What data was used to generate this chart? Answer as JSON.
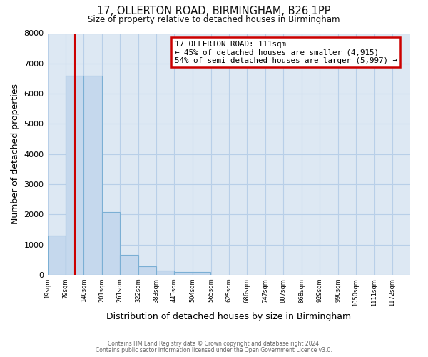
{
  "title_line1": "17, OLLERTON ROAD, BIRMINGHAM, B26 1PP",
  "title_line2": "Size of property relative to detached houses in Birmingham",
  "xlabel": "Distribution of detached houses by size in Birmingham",
  "ylabel": "Number of detached properties",
  "bar_edges": [
    19,
    79,
    140,
    201,
    261,
    322,
    383,
    443,
    504,
    565,
    625,
    686,
    747,
    807,
    868,
    929,
    990,
    1050,
    1111,
    1172,
    1232
  ],
  "bar_heights": [
    1300,
    6600,
    6600,
    2080,
    650,
    290,
    130,
    80,
    80,
    0,
    0,
    0,
    0,
    0,
    0,
    0,
    0,
    0,
    0,
    0
  ],
  "bar_color": "#c5d8ed",
  "bar_edgecolor": "#7bafd4",
  "vline_x": 111,
  "vline_color": "#cc0000",
  "ylim": [
    0,
    8000
  ],
  "annotation_box_text": "17 OLLERTON ROAD: 111sqm\n← 45% of detached houses are smaller (4,915)\n54% of semi-detached houses are larger (5,997) →",
  "annotation_box_color": "#cc0000",
  "footer_line1": "Contains HM Land Registry data © Crown copyright and database right 2024.",
  "footer_line2": "Contains public sector information licensed under the Open Government Licence v3.0.",
  "bg_color": "#ffffff",
  "plot_bg_color": "#dde8f3",
  "grid_color": "#b8cfe8"
}
